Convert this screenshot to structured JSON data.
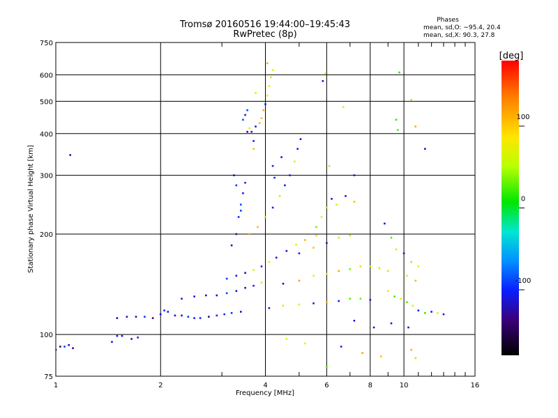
{
  "chart_data": {
    "type": "scatter",
    "title": "Tromsø 20160516 19:44:00–19:45:43",
    "subtitle": "RwPretec (8p)",
    "xlabel": "Frequency [MHz]",
    "ylabel": "Stationary phase Virtual Height [km]",
    "xscale": "log",
    "yscale": "log",
    "xlim": [
      1,
      16
    ],
    "ylim": [
      75,
      750
    ],
    "x_ticks": [
      1,
      2,
      4,
      6,
      8,
      10,
      16
    ],
    "x_minor_ticks": [
      3,
      5,
      7,
      9,
      11,
      12,
      13,
      14,
      15
    ],
    "y_ticks": [
      75,
      100,
      200,
      300,
      400,
      500,
      600,
      750
    ],
    "grid": true,
    "phase_info": {
      "heading": "Phases",
      "line_o": "mean, sd,O: −95.4, 20.4",
      "line_x": "mean, sd,X:  90.3, 27.8"
    },
    "colorbar": {
      "label": "[deg]",
      "ticks": [
        100,
        0,
        -100
      ],
      "range": [
        -180,
        180
      ]
    },
    "series": [
      {
        "points": [
          [
            1.0,
            90
          ],
          [
            1.03,
            92
          ],
          [
            1.06,
            92
          ],
          [
            1.09,
            93
          ],
          [
            1.12,
            91
          ],
          [
            1.1,
            345
          ],
          [
            1.45,
            95
          ],
          [
            1.5,
            99
          ],
          [
            1.55,
            99
          ],
          [
            1.65,
            97
          ],
          [
            1.72,
            98
          ],
          [
            1.5,
            112
          ],
          [
            1.6,
            113
          ],
          [
            1.7,
            113
          ],
          [
            1.8,
            113
          ],
          [
            1.9,
            112
          ],
          [
            2.0,
            115
          ],
          [
            2.05,
            118
          ],
          [
            2.1,
            117
          ],
          [
            2.2,
            114
          ],
          [
            2.3,
            114
          ],
          [
            2.4,
            113
          ],
          [
            2.5,
            112
          ],
          [
            2.6,
            112
          ],
          [
            2.75,
            113
          ],
          [
            2.9,
            114
          ],
          [
            3.05,
            115
          ],
          [
            3.2,
            116
          ],
          [
            3.4,
            117
          ],
          [
            2.3,
            128
          ],
          [
            2.5,
            130
          ],
          [
            2.7,
            131
          ],
          [
            2.9,
            131
          ],
          [
            3.1,
            133
          ],
          [
            3.3,
            135
          ],
          [
            3.5,
            138
          ],
          [
            3.7,
            140
          ],
          [
            3.9,
            143
          ],
          [
            3.1,
            147
          ],
          [
            3.3,
            150
          ],
          [
            3.5,
            153
          ],
          [
            3.7,
            156
          ],
          [
            3.9,
            160
          ],
          [
            4.1,
            165
          ],
          [
            4.3,
            170
          ],
          [
            4.6,
            178
          ],
          [
            4.9,
            186
          ],
          [
            5.2,
            192
          ],
          [
            5.6,
            198
          ],
          [
            3.2,
            185
          ],
          [
            3.3,
            200
          ],
          [
            3.35,
            225
          ],
          [
            3.4,
            245
          ],
          [
            3.45,
            265
          ],
          [
            3.5,
            285
          ],
          [
            3.25,
            300
          ],
          [
            3.3,
            280
          ],
          [
            3.4,
            235
          ],
          [
            3.6,
            200
          ],
          [
            3.8,
            210
          ],
          [
            4.0,
            225
          ],
          [
            4.2,
            240
          ],
          [
            4.4,
            260
          ],
          [
            4.55,
            280
          ],
          [
            4.7,
            300
          ],
          [
            4.85,
            330
          ],
          [
            4.95,
            360
          ],
          [
            5.05,
            385
          ],
          [
            4.2,
            320
          ],
          [
            4.45,
            340
          ],
          [
            4.25,
            295
          ],
          [
            3.55,
            405
          ],
          [
            3.6,
            415
          ],
          [
            3.65,
            405
          ],
          [
            3.75,
            420
          ],
          [
            3.85,
            430
          ],
          [
            3.9,
            445
          ],
          [
            3.95,
            470
          ],
          [
            4.0,
            490
          ],
          [
            4.05,
            520
          ],
          [
            4.1,
            555
          ],
          [
            4.15,
            590
          ],
          [
            4.2,
            620
          ],
          [
            4.05,
            650
          ],
          [
            3.45,
            440
          ],
          [
            3.5,
            455
          ],
          [
            3.75,
            530
          ],
          [
            3.55,
            470
          ],
          [
            3.7,
            360
          ],
          [
            3.7,
            380
          ],
          [
            4.1,
            120
          ],
          [
            4.5,
            122
          ],
          [
            5.0,
            123
          ],
          [
            5.5,
            124
          ],
          [
            6.0,
            125
          ],
          [
            6.5,
            126
          ],
          [
            7.0,
            128
          ],
          [
            7.5,
            128
          ],
          [
            8.0,
            127
          ],
          [
            4.5,
            142
          ],
          [
            5.0,
            145
          ],
          [
            5.5,
            150
          ],
          [
            6.0,
            152
          ],
          [
            6.5,
            155
          ],
          [
            7.0,
            157
          ],
          [
            7.5,
            160
          ],
          [
            8.0,
            160
          ],
          [
            8.5,
            158
          ],
          [
            9.0,
            155
          ],
          [
            5.0,
            175
          ],
          [
            5.5,
            182
          ],
          [
            6.0,
            188
          ],
          [
            6.5,
            195
          ],
          [
            7.0,
            198
          ],
          [
            5.6,
            210
          ],
          [
            5.8,
            225
          ],
          [
            6.0,
            240
          ],
          [
            6.2,
            255
          ],
          [
            6.4,
            245
          ],
          [
            6.8,
            260
          ],
          [
            7.2,
            250
          ],
          [
            6.7,
            480
          ],
          [
            9.6,
            410
          ],
          [
            9.5,
            440
          ],
          [
            9.7,
            610
          ],
          [
            10.5,
            505
          ],
          [
            10.8,
            420
          ],
          [
            11.5,
            360
          ],
          [
            5.85,
            575
          ],
          [
            5.95,
            605
          ],
          [
            6.1,
            320
          ],
          [
            7.2,
            300
          ],
          [
            8.8,
            215
          ],
          [
            9.2,
            195
          ],
          [
            9.5,
            180
          ],
          [
            10.0,
            175
          ],
          [
            10.5,
            165
          ],
          [
            11.0,
            160
          ],
          [
            10.2,
            150
          ],
          [
            10.8,
            145
          ],
          [
            9.0,
            135
          ],
          [
            9.4,
            130
          ],
          [
            9.8,
            128
          ],
          [
            10.2,
            125
          ],
          [
            10.6,
            122
          ],
          [
            11.0,
            118
          ],
          [
            11.5,
            116
          ],
          [
            12.0,
            117
          ],
          [
            12.5,
            116
          ],
          [
            13.0,
            115
          ],
          [
            7.2,
            110
          ],
          [
            8.2,
            105
          ],
          [
            9.2,
            108
          ],
          [
            10.3,
            105
          ],
          [
            4.6,
            97
          ],
          [
            5.2,
            94
          ],
          [
            6.6,
            92
          ],
          [
            7.6,
            88
          ],
          [
            8.6,
            86
          ],
          [
            10.5,
            90
          ],
          [
            6.0,
            80
          ],
          [
            10.8,
            85
          ]
        ]
      }
    ]
  }
}
